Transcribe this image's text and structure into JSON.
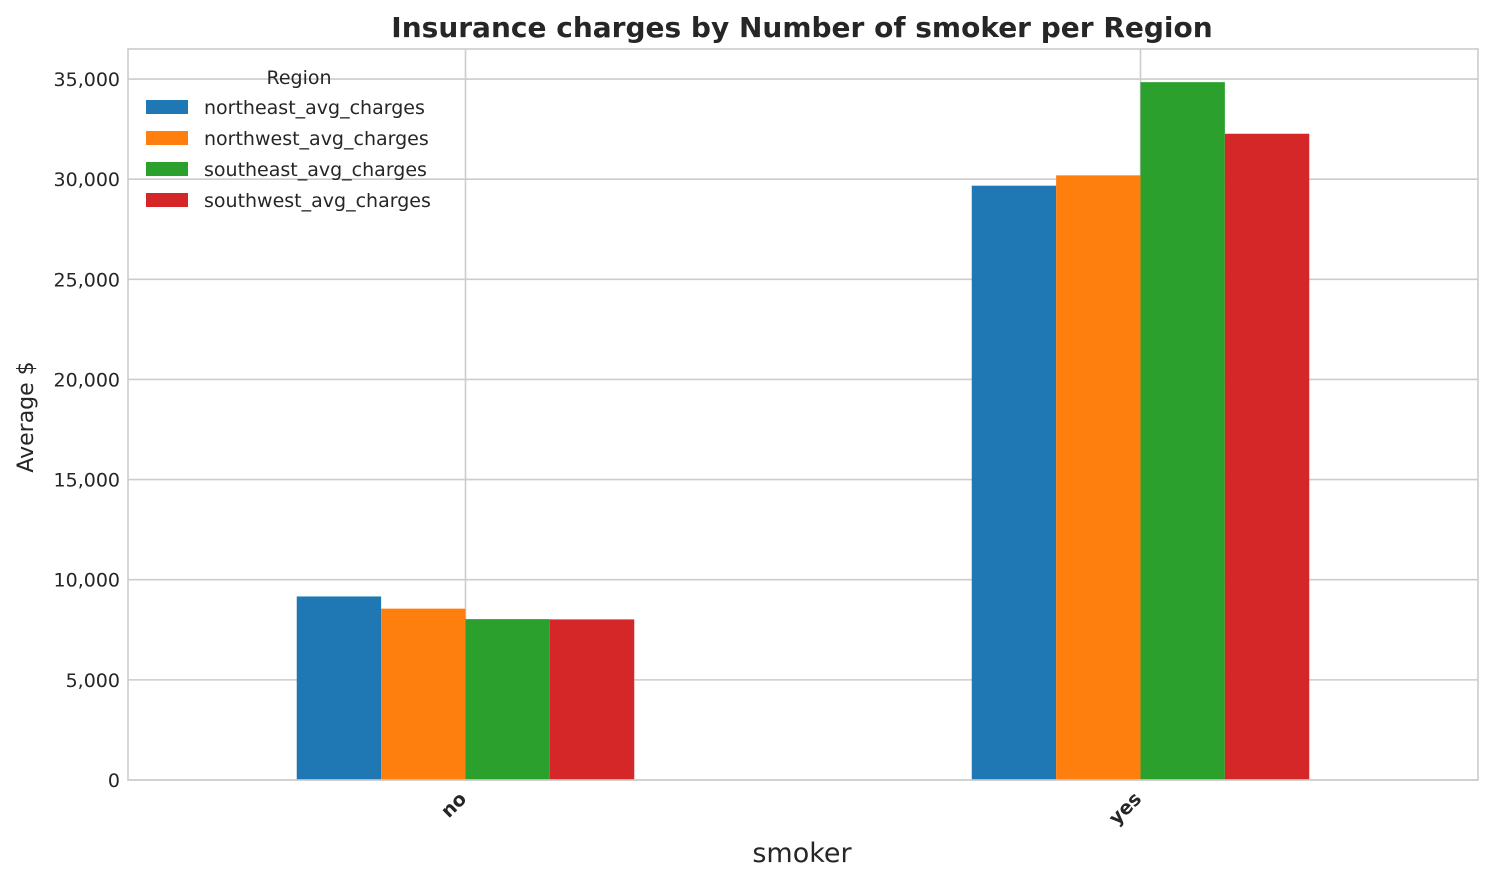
{
  "chart_data": {
    "type": "bar",
    "title": "Insurance charges by Number of smoker per Region",
    "xlabel": "smoker",
    "ylabel": "Average $",
    "categories": [
      "no",
      "yes"
    ],
    "ylim": [
      0,
      36500
    ],
    "yticks": [
      0,
      5000,
      10000,
      15000,
      20000,
      25000,
      30000,
      35000
    ],
    "ytick_labels": [
      "0",
      "5,000",
      "10,000",
      "15,000",
      "20,000",
      "25,000",
      "30,000",
      "35,000"
    ],
    "grid": true,
    "legend": {
      "title": "Region",
      "placement": "upper-left"
    },
    "series": [
      {
        "name": "northeast_avg_charges",
        "color": "#1f77b4",
        "values": [
          9165,
          29674
        ]
      },
      {
        "name": "northwest_avg_charges",
        "color": "#ff7f0e",
        "values": [
          8556,
          30192
        ]
      },
      {
        "name": "southeast_avg_charges",
        "color": "#2ca02c",
        "values": [
          8032,
          34845
        ]
      },
      {
        "name": "southwest_avg_charges",
        "color": "#d62728",
        "values": [
          8019,
          32269
        ]
      }
    ]
  }
}
